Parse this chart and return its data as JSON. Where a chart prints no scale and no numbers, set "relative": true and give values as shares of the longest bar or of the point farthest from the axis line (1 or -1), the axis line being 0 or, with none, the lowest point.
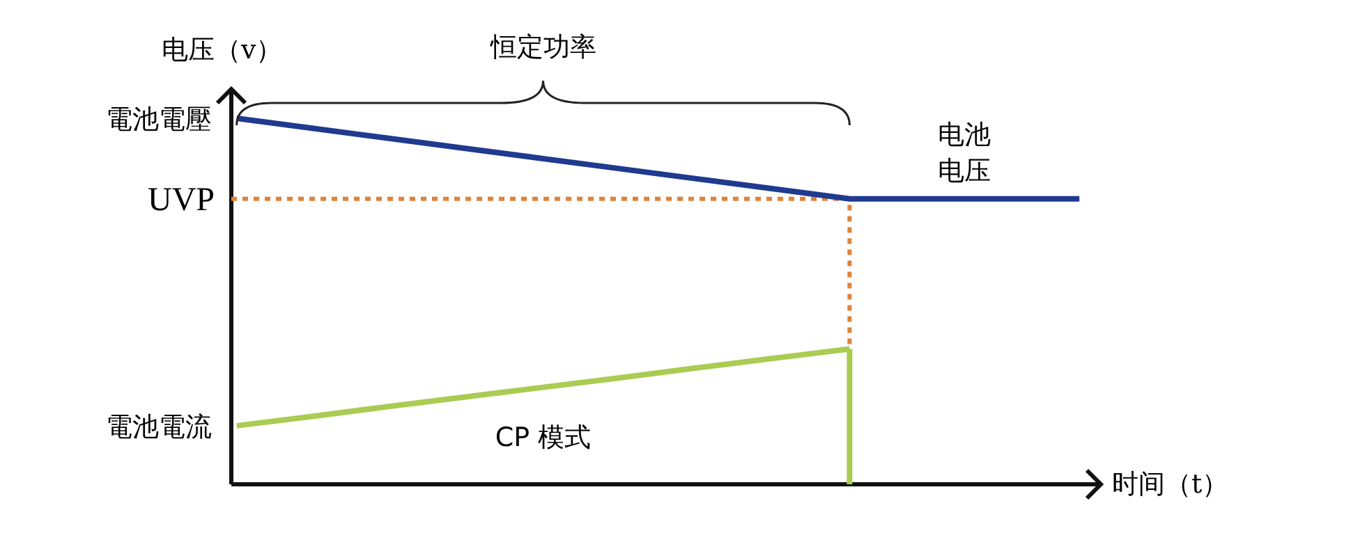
{
  "chart_data": {
    "type": "line",
    "relative": true,
    "xlabel": "时间（t）",
    "ylabel": "电压（v）",
    "categories": [
      null,
      null,
      null,
      null,
      null,
      null,
      null,
      null,
      null,
      null,
      null,
      null
    ],
    "series": [
      {
        "color": "#1f3a8f",
        "values": [
          1,
          0.9725,
          0.945,
          0.9175,
          0.89,
          0.8625,
          0.835,
          0.8075,
          0.78,
          0.78,
          0.78,
          0.78
        ]
      },
      {
        "color": "#a9cc52",
        "values": [
          0.16,
          0.186,
          0.213,
          0.239,
          0.265,
          0.291,
          0.318,
          0.344,
          0.37,
          null,
          null,
          null
        ]
      }
    ],
    "ref_lines": [
      {
        "axis": "y",
        "value": 0.78,
        "label": "UVP",
        "color": "#e0833a",
        "line_style": "dotted"
      }
    ],
    "annotations": [
      "恒定功率",
      "电池电压",
      "CP 模式",
      "電池電壓",
      "電池電流"
    ]
  }
}
